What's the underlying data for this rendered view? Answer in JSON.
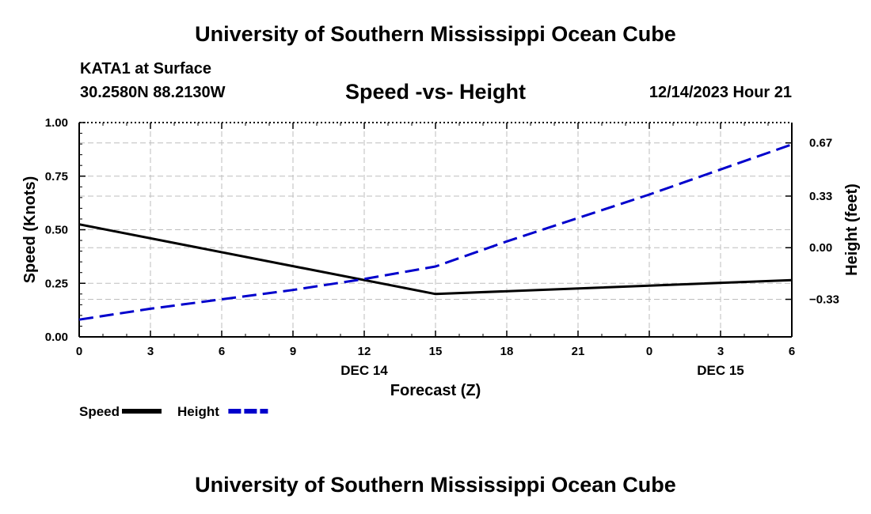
{
  "header": {
    "title": "University of Southern Mississippi Ocean Cube",
    "station": "KATA1 at Surface",
    "coords": "30.2580N  88.2130W",
    "subtitle": "Speed -vs- Height",
    "datetime": "12/14/2023 Hour 21"
  },
  "footer": {
    "title": "University of Southern Mississippi Ocean Cube"
  },
  "chart_data": {
    "type": "line",
    "xlabel": "Forecast (Z)",
    "x_ticks": [
      "0",
      "3",
      "6",
      "9",
      "12",
      "15",
      "18",
      "21",
      "0",
      "3",
      "6"
    ],
    "x_day_labels": [
      {
        "after_tick": 4,
        "label": "DEC 14"
      },
      {
        "after_tick": 9,
        "label": "DEC 15"
      }
    ],
    "x_range_hours": [
      0,
      30
    ],
    "left_axis": {
      "label": "Speed (Knots)",
      "ylim": [
        0,
        1
      ],
      "ticks": [
        0,
        0.25,
        0.5,
        0.75,
        1.0
      ],
      "tick_labels": [
        "0.00",
        "0.25",
        "0.50",
        "0.75",
        "1.00"
      ]
    },
    "right_axis": {
      "label": "Height (feet)",
      "ylim": [
        -0.57,
        0.8
      ],
      "ticks": [
        -0.33,
        0.0,
        0.33,
        0.67
      ],
      "tick_labels": [
        "−0.33",
        "0.00",
        "0.33",
        "0.67"
      ]
    },
    "series": [
      {
        "name": "Speed",
        "axis": "left",
        "color": "#000000",
        "dash": "solid",
        "x": [
          0,
          15,
          30
        ],
        "values": [
          0.525,
          0.2,
          0.265
        ]
      },
      {
        "name": "Height",
        "axis": "right",
        "color": "#0000cc",
        "dash": "dashed",
        "x": [
          0,
          3,
          6,
          9,
          12,
          15,
          18,
          21,
          24,
          27,
          30
        ],
        "values": [
          -0.46,
          -0.39,
          -0.33,
          -0.27,
          -0.2,
          -0.12,
          0.04,
          0.19,
          0.34,
          0.5,
          0.66
        ]
      }
    ],
    "legend": [
      {
        "label": "Speed",
        "color": "#000000",
        "dash": "solid"
      },
      {
        "label": "Height",
        "color": "#0000cc",
        "dash": "dashed"
      }
    ],
    "legend_position": "bottom-left",
    "grid": true
  }
}
